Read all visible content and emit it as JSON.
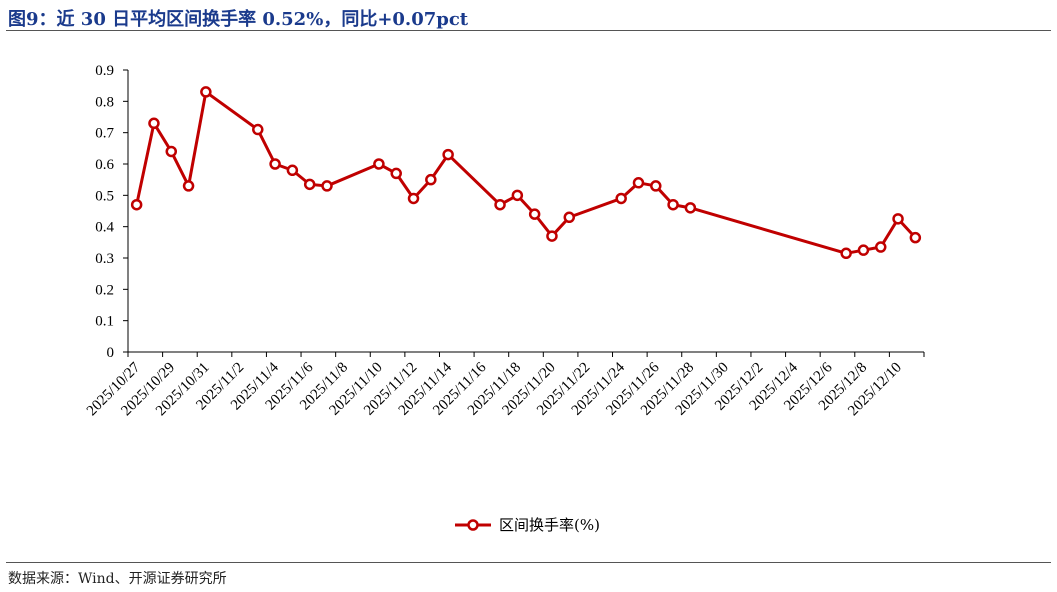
{
  "header": {
    "title": "图9：近 30 日平均区间换手率 0.52%，同比+0.07pct"
  },
  "footer": {
    "source": "数据来源：Wind、开源证券研究所"
  },
  "colors": {
    "series": "#c00000",
    "title": "#1a3a8c",
    "axis": "#000000"
  },
  "chart_data": {
    "type": "line",
    "title": "图9：近 30 日平均区间换手率 0.52%，同比+0.07pct",
    "xlabel": "",
    "ylabel": "",
    "ylim": [
      0,
      0.9
    ],
    "yticks": [
      "0",
      "0.1",
      "0.2",
      "0.3",
      "0.4",
      "0.5",
      "0.6",
      "0.7",
      "0.8",
      "0.9"
    ],
    "xlim": [
      "2025-10-27",
      "2025-12-11"
    ],
    "xticks": [
      "2025/10/27",
      "2025/10/29",
      "2025/10/31",
      "2025/11/2",
      "2025/11/4",
      "2025/11/6",
      "2025/11/8",
      "2025/11/10",
      "2025/11/12",
      "2025/11/14",
      "2025/11/16",
      "2025/11/18",
      "2025/11/20",
      "2025/11/22",
      "2025/11/24",
      "2025/11/26",
      "2025/11/28",
      "2025/11/30",
      "2025/12/2",
      "2025/12/4",
      "2025/12/6",
      "2025/12/8",
      "2025/12/10"
    ],
    "grid": false,
    "legend": "bottom-center",
    "series": [
      {
        "name": "区间换手率(%)",
        "x": [
          "2025-10-27",
          "2025-10-28",
          "2025-10-29",
          "2025-10-30",
          "2025-10-31",
          "2025-11-03",
          "2025-11-04",
          "2025-11-05",
          "2025-11-06",
          "2025-11-07",
          "2025-11-10",
          "2025-11-11",
          "2025-11-12",
          "2025-11-13",
          "2025-11-14",
          "2025-11-17",
          "2025-11-18",
          "2025-11-19",
          "2025-11-20",
          "2025-11-21",
          "2025-11-24",
          "2025-11-25",
          "2025-11-26",
          "2025-11-27",
          "2025-11-28",
          "2025-12-07",
          "2025-12-08",
          "2025-12-09",
          "2025-12-10",
          "2025-12-11"
        ],
        "values": [
          0.47,
          0.73,
          0.64,
          0.53,
          0.83,
          0.71,
          0.6,
          0.58,
          0.535,
          0.53,
          0.6,
          0.57,
          0.49,
          0.55,
          0.63,
          0.47,
          0.5,
          0.44,
          0.37,
          0.43,
          0.49,
          0.54,
          0.53,
          0.47,
          0.46,
          0.315,
          0.325,
          0.335,
          0.425,
          0.365
        ]
      }
    ]
  }
}
